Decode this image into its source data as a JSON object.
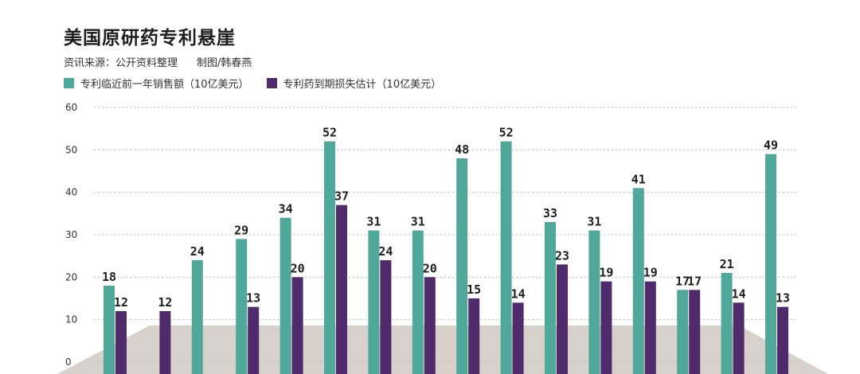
{
  "title": "美国原研药专利悬崖",
  "source": "资讯来源：公开资料整理",
  "credit": "制图/韩春燕",
  "colors": {
    "series1": "#4fa89a",
    "series2": "#4f2b6b",
    "floor": "#d8d0ca",
    "grid": "#bbbbbb"
  },
  "chart_data": {
    "type": "bar",
    "title": "美国原研药专利悬崖",
    "xlabel": "",
    "ylabel": "",
    "ylim": [
      0,
      60
    ],
    "yticks": [
      0,
      10,
      20,
      30,
      40,
      50,
      60
    ],
    "grid": true,
    "legend_position": "top-left",
    "categories": [
      "",
      "",
      "",
      "",
      "",
      "",
      "",
      "",
      "",
      "",
      "",
      "",
      "",
      "",
      "",
      ""
    ],
    "series": [
      {
        "name": "专利临近前一年销售额（10亿美元）",
        "values": [
          18,
          null,
          24,
          29,
          34,
          52,
          31,
          31,
          48,
          52,
          33,
          31,
          41,
          17,
          21,
          49
        ]
      },
      {
        "name": "专利药到期损失估计（10亿美元）",
        "values": [
          12,
          12,
          null,
          13,
          20,
          37,
          24,
          20,
          15,
          14,
          23,
          19,
          19,
          17,
          14,
          13
        ]
      }
    ]
  }
}
